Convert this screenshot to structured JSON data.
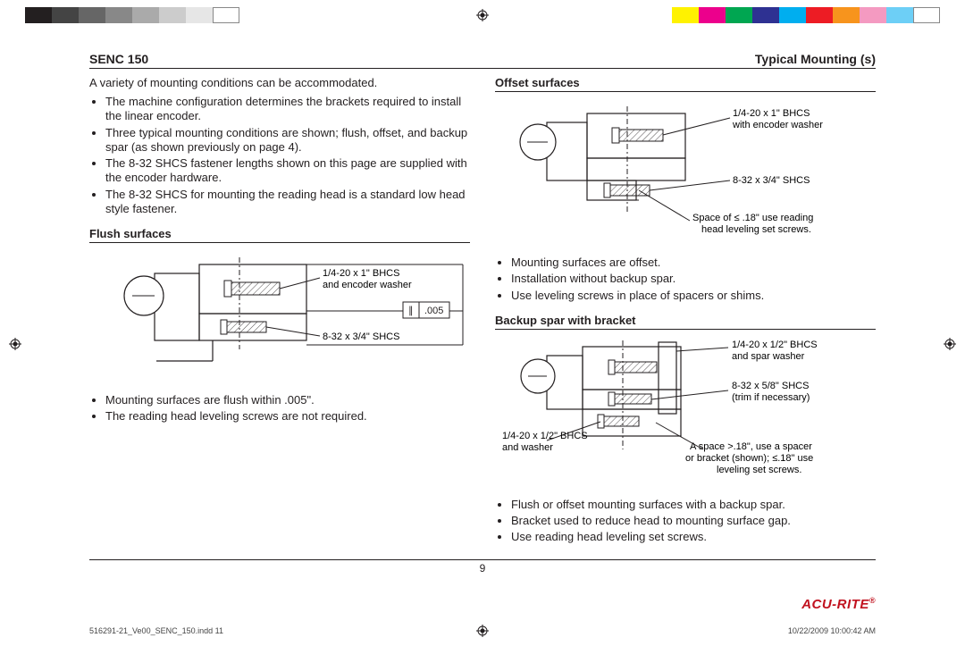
{
  "colorbar_left": [
    "#231f20",
    "#444444",
    "#666666",
    "#888888",
    "#aaaaaa",
    "#cccccc",
    "#e6e6e6",
    "#ffffff"
  ],
  "colorbar_right": [
    "#fff200",
    "#ec008c",
    "#00a651",
    "#2e3192",
    "#00aeef",
    "#ed1c24",
    "#f7941d",
    "#f49ac1",
    "#6dcff6",
    "#ffffff"
  ],
  "colorbar_swatch_border": "#231f20",
  "header": {
    "left": "SENC 150",
    "right": "Typical Mounting (s)"
  },
  "intro": "A variety of  mounting conditions can be accommodated.",
  "intro_bullets": [
    "The machine configuration determines the brackets required to install the linear encoder.",
    "Three typical mounting conditions are shown; flush, offset, and backup spar (as shown previously on page 4).",
    "The 8-32 SHCS fastener lengths shown on this page are supplied with the encoder hardware.",
    "The 8-32 SHCS for mounting the reading head is a standard low head style fastener."
  ],
  "flush": {
    "title": "Flush surfaces",
    "callout_top": "1/4-20 x 1\" BHCS\nand encoder washer",
    "callout_bottom": "8-32 x 3/4\" SHCS",
    "gdandt": ".005",
    "bullets": [
      "Mounting surfaces are flush within .005\".",
      "The reading head leveling screws are not required."
    ]
  },
  "offset": {
    "title": "Offset surfaces",
    "callout_top": "1/4-20 x 1\" BHCS\nwith encoder washer",
    "callout_mid": "8-32 x 3/4\" SHCS",
    "callout_bottom": "Space of ≤ .18\"  use reading head leveling set screws.",
    "bullets": [
      "Mounting surfaces are offset.",
      "Installation without backup spar.",
      "Use leveling screws in place of spacers or shims."
    ]
  },
  "backup": {
    "title": "Backup spar with bracket",
    "callout_tr": "1/4-20 x 1/2\" BHCS\nand spar washer",
    "callout_r": "8-32 x 5/8\" SHCS\n(trim if necessary)",
    "callout_bl": "1/4-20 x 1/2\" BHCS\nand washer",
    "callout_br": "A space >.18\", use a spacer or bracket (shown); ≤.18\" use leveling set screws.",
    "bullets": [
      "Flush or offset mounting surfaces with a backup spar.",
      "Bracket used to reduce head to mounting surface gap.",
      "Use reading head leveling set screws."
    ]
  },
  "page_number": "9",
  "brand": "ACU-RITE",
  "footer_left": "516291-21_Ve00_SENC_150.indd   11",
  "footer_right": "10/22/2009   10:00:42 AM",
  "diagram_style": {
    "stroke": "#231f20",
    "stroke_width": 1.2,
    "hatch_spacing": 4,
    "label_fontsize": 11,
    "label_color": "#231f20"
  }
}
